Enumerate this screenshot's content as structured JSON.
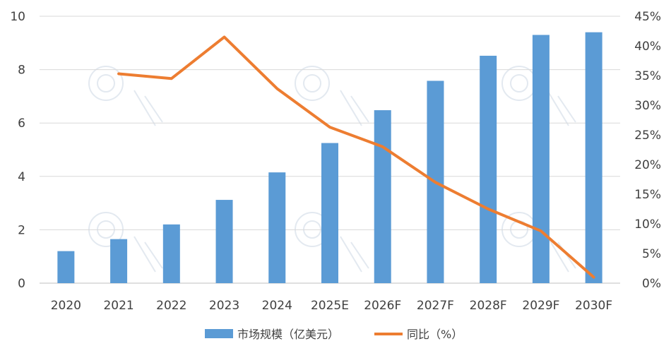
{
  "chart_data": {
    "type": "bar",
    "categories": [
      "2020",
      "2021",
      "2022",
      "2023",
      "2024",
      "2025E",
      "2026F",
      "2027F",
      "2028F",
      "2029F",
      "2030F"
    ],
    "series": [
      {
        "name": "市场规模（亿美元）",
        "type": "bar",
        "axis": "left",
        "color": "#5b9bd5",
        "values": [
          1.2,
          1.65,
          2.2,
          3.12,
          4.15,
          5.25,
          6.48,
          7.58,
          8.52,
          9.3,
          9.4
        ]
      },
      {
        "name": "同比（%）",
        "type": "line",
        "axis": "right",
        "color": "#ed7d31",
        "values": [
          null,
          35.3,
          34.5,
          41.5,
          32.8,
          26.3,
          23.0,
          17.0,
          12.5,
          8.8,
          1.0
        ]
      }
    ],
    "y_left": {
      "ylim": [
        0,
        10
      ],
      "ticks": [
        "0",
        "2",
        "4",
        "6",
        "8",
        "10"
      ]
    },
    "y_right": {
      "ylim": [
        0,
        45
      ],
      "ticks": [
        "0%",
        "5%",
        "10%",
        "15%",
        "20%",
        "25%",
        "30%",
        "35%",
        "40%",
        "45%"
      ]
    },
    "grid": true,
    "legend_position": "bottom"
  }
}
